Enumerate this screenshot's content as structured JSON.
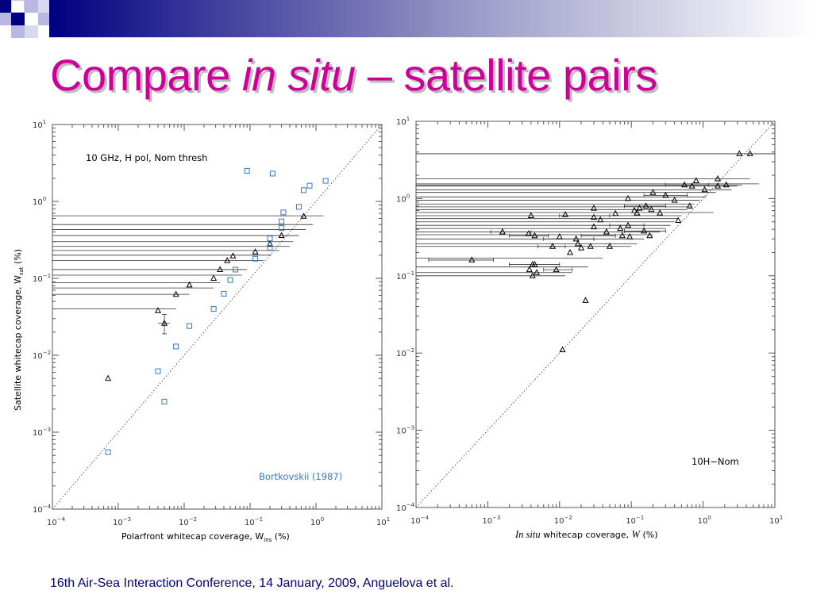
{
  "slide": {
    "title_part1": "Compare ",
    "title_italic": "in situ",
    "title_part2": " – satellite pairs",
    "footer": "16th Air-Sea Interaction Conference, 14 January, 2009, Anguelova et al.",
    "accent_color": "#cc0099",
    "footer_color": "#000080",
    "decor_color": "#000080"
  },
  "chart_data": [
    {
      "type": "scatter",
      "x_scale": "log",
      "y_scale": "log",
      "xlim": [
        0.0001,
        10
      ],
      "ylim": [
        0.0001,
        10
      ],
      "x_ticks": [
        {
          "base": "10",
          "exp": "−4"
        },
        {
          "base": "10",
          "exp": "−3"
        },
        {
          "base": "10",
          "exp": "−2"
        },
        {
          "base": "10",
          "exp": "−1"
        },
        {
          "base": "10",
          "exp": "0"
        },
        {
          "base": "10",
          "exp": "1"
        }
      ],
      "y_ticks": [
        {
          "base": "10",
          "exp": "−4"
        },
        {
          "base": "10",
          "exp": "−3"
        },
        {
          "base": "10",
          "exp": "−2"
        },
        {
          "base": "10",
          "exp": "−1"
        },
        {
          "base": "10",
          "exp": "0"
        },
        {
          "base": "10",
          "exp": "1"
        }
      ],
      "xlabel": "Polarfront whitecap coverage, W",
      "xlabel_sub": "ins",
      "xlabel_unit": " (%)",
      "ylabel": "Satellite whitecap coverage, W",
      "ylabel_sub": "sat",
      "ylabel_unit": " (%)",
      "annotation": "10 GHz, H pol, Nom thresh",
      "legend_text": "Bortkovskii (1987)",
      "one_to_one_line": true,
      "series": [
        {
          "marker": "triangle",
          "color": "#000000",
          "points": [
            {
              "x": 0.0007,
              "y": 0.005
            },
            {
              "x": 0.004,
              "y": 0.038
            },
            {
              "x": 0.005,
              "y": 0.026,
              "yerr": [
                0.019,
                0.034
              ],
              "xerr": [
                0.004,
                0.006
              ]
            },
            {
              "x": 0.0075,
              "y": 0.062
            },
            {
              "x": 0.012,
              "y": 0.082
            },
            {
              "x": 0.028,
              "y": 0.1
            },
            {
              "x": 0.035,
              "y": 0.13
            },
            {
              "x": 0.045,
              "y": 0.17
            },
            {
              "x": 0.055,
              "y": 0.195
            },
            {
              "x": 0.12,
              "y": 0.22
            },
            {
              "x": 0.2,
              "y": 0.28
            },
            {
              "x": 0.3,
              "y": 0.36
            },
            {
              "x": 0.65,
              "y": 0.64
            }
          ]
        },
        {
          "name": "Bortkovskii (1987)",
          "marker": "square",
          "color": "#3377cc",
          "points": [
            {
              "x": 0.0007,
              "y": 0.00055
            },
            {
              "x": 0.004,
              "y": 0.0062
            },
            {
              "x": 0.005,
              "y": 0.0025
            },
            {
              "x": 0.0075,
              "y": 0.013
            },
            {
              "x": 0.012,
              "y": 0.024
            },
            {
              "x": 0.028,
              "y": 0.04
            },
            {
              "x": 0.04,
              "y": 0.063
            },
            {
              "x": 0.05,
              "y": 0.095
            },
            {
              "x": 0.06,
              "y": 0.13
            },
            {
              "x": 0.09,
              "y": 2.5
            },
            {
              "x": 0.12,
              "y": 0.18
            },
            {
              "x": 0.2,
              "y": 0.25
            },
            {
              "x": 0.2,
              "y": 0.33
            },
            {
              "x": 0.22,
              "y": 2.3
            },
            {
              "x": 0.3,
              "y": 0.45
            },
            {
              "x": 0.3,
              "y": 0.55
            },
            {
              "x": 0.32,
              "y": 0.72
            },
            {
              "x": 0.55,
              "y": 0.85
            },
            {
              "x": 0.65,
              "y": 1.4
            },
            {
              "x": 0.8,
              "y": 1.6
            },
            {
              "x": 1.4,
              "y": 1.85
            }
          ]
        }
      ],
      "hlines": [
        {
          "y": 0.65,
          "x": [
            0.0001,
            1.3
          ]
        },
        {
          "y": 0.5,
          "x": [
            0.0001,
            0.9
          ]
        },
        {
          "y": 0.43,
          "x": [
            0.0001,
            0.7
          ]
        },
        {
          "y": 0.36,
          "x": [
            0.0001,
            0.55
          ]
        },
        {
          "y": 0.3,
          "x": [
            0.0001,
            0.45
          ]
        },
        {
          "y": 0.26,
          "x": [
            0.0001,
            0.4
          ]
        },
        {
          "y": 0.23,
          "x": [
            0.0001,
            0.28
          ]
        },
        {
          "y": 0.2,
          "x": [
            0.0001,
            0.21
          ]
        },
        {
          "y": 0.17,
          "x": [
            0.0001,
            0.16
          ]
        },
        {
          "y": 0.13,
          "x": [
            0.0001,
            0.09
          ]
        },
        {
          "y": 0.11,
          "x": [
            0.0001,
            0.075
          ]
        },
        {
          "y": 0.088,
          "x": [
            0.0001,
            0.035
          ]
        },
        {
          "y": 0.075,
          "x": [
            0.0001,
            0.028
          ]
        },
        {
          "y": 0.062,
          "x": [
            0.0001,
            0.012
          ]
        },
        {
          "y": 0.04,
          "x": [
            0.0001,
            0.0075
          ]
        }
      ]
    },
    {
      "type": "scatter",
      "x_scale": "log",
      "y_scale": "log",
      "xlim": [
        0.0001,
        10
      ],
      "ylim": [
        0.0001,
        10
      ],
      "x_ticks": [
        {
          "base": "10",
          "exp": "−4"
        },
        {
          "base": "10",
          "exp": "−3"
        },
        {
          "base": "10",
          "exp": "−2"
        },
        {
          "base": "10",
          "exp": "−1"
        },
        {
          "base": "10",
          "exp": "0"
        },
        {
          "base": "10",
          "exp": "1"
        }
      ],
      "y_ticks": [
        {
          "base": "10",
          "exp": "−4"
        },
        {
          "base": "10",
          "exp": "−3"
        },
        {
          "base": "10",
          "exp": "−2"
        },
        {
          "base": "10",
          "exp": "−1"
        },
        {
          "base": "10",
          "exp": "0"
        },
        {
          "base": "10",
          "exp": "1"
        }
      ],
      "xlabel_italic": "In situ",
      "xlabel": " whitecap coverage, ",
      "xlabel_var": "W",
      "xlabel_unit": " (%)",
      "annotation": "10H−Nom",
      "one_to_one_line": true,
      "series": [
        {
          "marker": "triangle",
          "color": "#000000",
          "points": [
            {
              "x": 3.2,
              "y": 3.8
            },
            {
              "x": 4.5,
              "y": 3.8
            },
            {
              "x": 1.6,
              "y": 1.8
            },
            {
              "x": 0.8,
              "y": 1.7
            },
            {
              "x": 0.55,
              "y": 1.5
            },
            {
              "x": 0.7,
              "y": 1.45
            },
            {
              "x": 1.05,
              "y": 1.3
            },
            {
              "x": 1.6,
              "y": 1.45
            },
            {
              "x": 2.1,
              "y": 1.5
            },
            {
              "x": 0.2,
              "y": 1.2
            },
            {
              "x": 0.3,
              "y": 1.1
            },
            {
              "x": 0.4,
              "y": 0.95
            },
            {
              "x": 0.09,
              "y": 1.0
            },
            {
              "x": 0.16,
              "y": 0.8
            },
            {
              "x": 0.13,
              "y": 0.75
            },
            {
              "x": 0.11,
              "y": 0.7
            },
            {
              "x": 0.19,
              "y": 0.72
            },
            {
              "x": 0.25,
              "y": 0.65
            },
            {
              "x": 0.65,
              "y": 0.8
            },
            {
              "x": 0.45,
              "y": 0.52
            },
            {
              "x": 0.03,
              "y": 0.75
            },
            {
              "x": 0.004,
              "y": 0.6
            },
            {
              "x": 0.012,
              "y": 0.62
            },
            {
              "x": 0.03,
              "y": 0.57
            },
            {
              "x": 0.037,
              "y": 0.53
            },
            {
              "x": 0.06,
              "y": 0.64
            },
            {
              "x": 0.12,
              "y": 0.65
            },
            {
              "x": 0.03,
              "y": 0.43
            },
            {
              "x": 0.045,
              "y": 0.37
            },
            {
              "x": 0.07,
              "y": 0.41
            },
            {
              "x": 0.075,
              "y": 0.33
            },
            {
              "x": 0.09,
              "y": 0.45
            },
            {
              "x": 0.095,
              "y": 0.32
            },
            {
              "x": 0.15,
              "y": 0.38
            },
            {
              "x": 0.18,
              "y": 0.33
            },
            {
              "x": 0.0016,
              "y": 0.37
            },
            {
              "x": 0.0037,
              "y": 0.35
            },
            {
              "x": 0.0045,
              "y": 0.33
            },
            {
              "x": 0.01,
              "y": 0.32
            },
            {
              "x": 0.017,
              "y": 0.3
            },
            {
              "x": 0.018,
              "y": 0.26
            },
            {
              "x": 0.02,
              "y": 0.23
            },
            {
              "x": 0.008,
              "y": 0.24
            },
            {
              "x": 0.027,
              "y": 0.24
            },
            {
              "x": 0.05,
              "y": 0.24
            },
            {
              "x": 0.014,
              "y": 0.2
            },
            {
              "x": 0.0006,
              "y": 0.16
            },
            {
              "x": 0.0042,
              "y": 0.14
            },
            {
              "x": 0.0045,
              "y": 0.14
            },
            {
              "x": 0.0038,
              "y": 0.12
            },
            {
              "x": 0.0048,
              "y": 0.11
            },
            {
              "x": 0.0042,
              "y": 0.1
            },
            {
              "x": 0.009,
              "y": 0.12
            },
            {
              "x": 0.023,
              "y": 0.048
            },
            {
              "x": 0.011,
              "y": 0.011
            }
          ]
        }
      ],
      "hlines": [
        {
          "y": 3.8,
          "x": [
            0.0001,
            10
          ]
        },
        {
          "y": 1.8,
          "x": [
            0.0001,
            4.5
          ]
        },
        {
          "y": 1.55,
          "x": [
            0.0001,
            6
          ]
        },
        {
          "y": 1.5,
          "x": [
            0.0001,
            3.5
          ]
        },
        {
          "y": 1.45,
          "x": [
            0.0001,
            3
          ]
        },
        {
          "y": 1.3,
          "x": [
            0.0001,
            2.5
          ]
        },
        {
          "y": 1.2,
          "x": [
            0.0001,
            1.5
          ]
        },
        {
          "y": 1.05,
          "x": [
            0.0001,
            1.1
          ]
        },
        {
          "y": 0.95,
          "x": [
            0.0001,
            0.9
          ]
        },
        {
          "y": 0.85,
          "x": [
            0.0001,
            0.75
          ]
        },
        {
          "y": 0.78,
          "x": [
            0.0001,
            0.7
          ]
        },
        {
          "y": 0.72,
          "x": [
            0.0001,
            0.6
          ]
        },
        {
          "y": 0.66,
          "x": [
            0.0001,
            1.4
          ]
        },
        {
          "y": 0.6,
          "x": [
            0.0001,
            0.5
          ]
        },
        {
          "y": 0.55,
          "x": [
            0.0001,
            0.45
          ]
        },
        {
          "y": 0.5,
          "x": [
            0.0001,
            0.4
          ]
        },
        {
          "y": 0.45,
          "x": [
            0.0001,
            0.35
          ]
        },
        {
          "y": 0.41,
          "x": [
            0.0001,
            0.3
          ]
        },
        {
          "y": 0.37,
          "x": [
            0.0001,
            0.25
          ]
        },
        {
          "y": 0.34,
          "x": [
            0.0001,
            0.2
          ]
        },
        {
          "y": 0.3,
          "x": [
            0.0001,
            0.15
          ]
        },
        {
          "y": 0.26,
          "x": [
            0.0001,
            0.12
          ]
        },
        {
          "y": 0.24,
          "x": [
            0.0001,
            0.1
          ]
        },
        {
          "y": 0.17,
          "x": [
            0.0001,
            0.04
          ]
        },
        {
          "y": 0.13,
          "x": [
            0.0001,
            0.025
          ]
        },
        {
          "y": 0.11,
          "x": [
            0.0001,
            0.015
          ]
        },
        {
          "y": 0.1,
          "x": [
            0.0001,
            0.012
          ]
        }
      ],
      "xerr_bars": [
        {
          "y": 0.37,
          "x": [
            0.0011,
            0.004
          ]
        },
        {
          "y": 0.16,
          "x": [
            0.00015,
            0.0012
          ]
        },
        {
          "y": 0.33,
          "x": [
            0.002,
            0.007
          ]
        },
        {
          "y": 0.24,
          "x": [
            0.005,
            0.012
          ]
        },
        {
          "y": 0.3,
          "x": [
            0.006,
            0.03
          ]
        },
        {
          "y": 0.33,
          "x": [
            0.02,
            0.06
          ]
        },
        {
          "y": 0.38,
          "x": [
            0.08,
            0.3
          ]
        },
        {
          "y": 0.45,
          "x": [
            0.05,
            0.15
          ]
        },
        {
          "y": 0.6,
          "x": [
            0.01,
            0.05
          ]
        },
        {
          "y": 1.1,
          "x": [
            0.15,
            0.6
          ]
        },
        {
          "y": 1.5,
          "x": [
            0.3,
            1.2
          ]
        },
        {
          "y": 0.8,
          "x": [
            0.08,
            0.3
          ]
        },
        {
          "y": 0.12,
          "x": [
            0.006,
            0.015
          ]
        },
        {
          "y": 0.14,
          "x": [
            0.002,
            0.01
          ]
        }
      ]
    }
  ]
}
